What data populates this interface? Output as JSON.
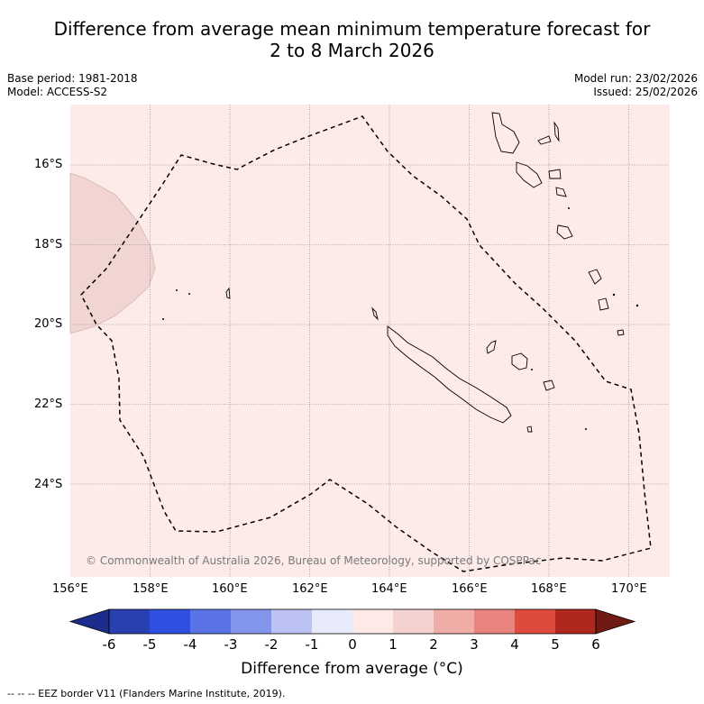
{
  "title": {
    "line1": "Difference from average mean minimum temperature forecast for",
    "line2": "2 to 8 March 2026"
  },
  "meta": {
    "base_period": "Base period: 1981-2018",
    "model": "Model: ACCESS-S2",
    "model_run": "Model run: 23/02/2026",
    "issued": "Issued: 25/02/2026"
  },
  "map": {
    "lat_labels": [
      "16°S",
      "18°S",
      "20°S",
      "22°S",
      "24°S"
    ],
    "lon_labels": [
      "156°E",
      "158°E",
      "160°E",
      "162°E",
      "164°E",
      "166°E",
      "168°E",
      "170°E"
    ],
    "copyright": "© Commonwealth of Australia 2026, Bureau of Meteorology, supported by COSPPac",
    "colors": {
      "background": "#fcebe8",
      "anomaly_patch": "#f0d5d2",
      "grid": "#777777",
      "coast": "#000000"
    }
  },
  "colorbar": {
    "ticks": [
      "-6",
      "-5",
      "-4",
      "-3",
      "-2",
      "-1",
      "0",
      "1",
      "2",
      "3",
      "4",
      "5",
      "6"
    ],
    "colors": [
      "#1b2c8c",
      "#2840b0",
      "#2f4fe0",
      "#5a74e6",
      "#8395ea",
      "#bcc3f2",
      "#e8ebfa",
      "#fdeae7",
      "#f3d2cf",
      "#f0aca7",
      "#e8847d",
      "#de4a3e",
      "#b0271f",
      "#701a14"
    ],
    "label": "Difference from average (°C)"
  },
  "legend": {
    "eez": "-- -- -- EEZ border V11 (Flanders Marine Institute, 2019)."
  }
}
